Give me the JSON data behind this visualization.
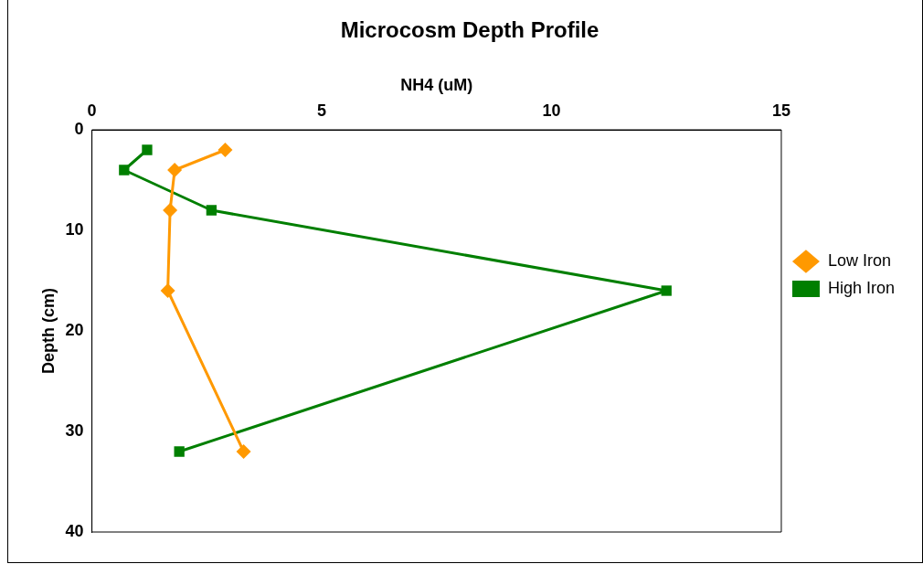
{
  "chart_data": {
    "type": "line",
    "title": "Microcosm Depth Profile",
    "xlabel": "NH4 (uM)",
    "ylabel": "Depth (cm)",
    "xlim": [
      0,
      15
    ],
    "xticks": [
      0,
      5,
      10,
      15
    ],
    "ylim": [
      40,
      0
    ],
    "yticks": [
      0,
      10,
      20,
      30,
      40
    ],
    "grid": false,
    "legend": "right",
    "series": [
      {
        "name": "Low Iron",
        "color": "#ff9900",
        "marker": "diamond",
        "x": [
          2.9,
          1.8,
          1.7,
          1.65,
          3.3
        ],
        "values": [
          2,
          4,
          8,
          16,
          32
        ]
      },
      {
        "name": "High Iron",
        "color": "#007f00",
        "marker": "square",
        "x": [
          1.2,
          0.7,
          2.6,
          12.5,
          1.9
        ],
        "values": [
          2,
          4,
          8,
          16,
          32
        ]
      }
    ]
  }
}
